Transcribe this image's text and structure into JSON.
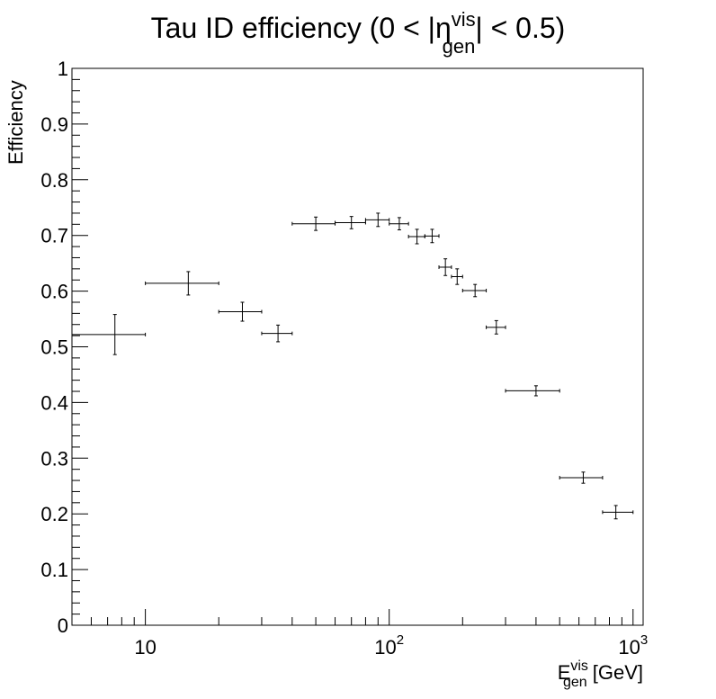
{
  "chart_data": {
    "type": "scatter",
    "title": {
      "prefix": "Tau ID efficiency (0 < |",
      "eta": "η",
      "sup": "vis",
      "sub": "gen",
      "suffix": "| < 0.5)"
    },
    "ylabel": "Efficiency",
    "xlabel": {
      "base": "E",
      "sup": "vis",
      "sub": "gen",
      "unit": " [GeV]"
    },
    "xscale": "log",
    "xlim": [
      5,
      1100
    ],
    "ylim": [
      0,
      1
    ],
    "x_tick_labels": [
      {
        "value": 10,
        "base": "10",
        "exp": ""
      },
      {
        "value": 100,
        "base": "10",
        "exp": "2"
      },
      {
        "value": 1000,
        "base": "10",
        "exp": "3"
      }
    ],
    "y_tick_labels": [
      "0",
      "0.1",
      "0.2",
      "0.3",
      "0.4",
      "0.5",
      "0.6",
      "0.7",
      "0.8",
      "0.9",
      "1"
    ],
    "series": [
      {
        "name": "efficiency",
        "points": [
          {
            "x": 7.5,
            "xlow": 5,
            "xhigh": 10,
            "y": 0.522,
            "yerr": 0.036
          },
          {
            "x": 15,
            "xlow": 10,
            "xhigh": 20,
            "y": 0.614,
            "yerr": 0.021
          },
          {
            "x": 25,
            "xlow": 20,
            "xhigh": 30,
            "y": 0.563,
            "yerr": 0.017
          },
          {
            "x": 35,
            "xlow": 30,
            "xhigh": 40,
            "y": 0.524,
            "yerr": 0.015
          },
          {
            "x": 50,
            "xlow": 40,
            "xhigh": 60,
            "y": 0.721,
            "yerr": 0.012
          },
          {
            "x": 70,
            "xlow": 60,
            "xhigh": 80,
            "y": 0.723,
            "yerr": 0.011
          },
          {
            "x": 90,
            "xlow": 80,
            "xhigh": 100,
            "y": 0.728,
            "yerr": 0.012
          },
          {
            "x": 110,
            "xlow": 100,
            "xhigh": 120,
            "y": 0.721,
            "yerr": 0.011
          },
          {
            "x": 130,
            "xlow": 120,
            "xhigh": 140,
            "y": 0.698,
            "yerr": 0.013
          },
          {
            "x": 150,
            "xlow": 140,
            "xhigh": 160,
            "y": 0.699,
            "yerr": 0.012
          },
          {
            "x": 170,
            "xlow": 160,
            "xhigh": 180,
            "y": 0.643,
            "yerr": 0.015
          },
          {
            "x": 190,
            "xlow": 180,
            "xhigh": 200,
            "y": 0.626,
            "yerr": 0.014
          },
          {
            "x": 225,
            "xlow": 200,
            "xhigh": 250,
            "y": 0.601,
            "yerr": 0.011
          },
          {
            "x": 275,
            "xlow": 250,
            "xhigh": 300,
            "y": 0.535,
            "yerr": 0.012
          },
          {
            "x": 400,
            "xlow": 300,
            "xhigh": 500,
            "y": 0.421,
            "yerr": 0.009
          },
          {
            "x": 625,
            "xlow": 500,
            "xhigh": 750,
            "y": 0.265,
            "yerr": 0.01
          },
          {
            "x": 850,
            "xlow": 750,
            "xhigh": 1000,
            "y": 0.203,
            "yerr": 0.012
          }
        ]
      }
    ]
  }
}
